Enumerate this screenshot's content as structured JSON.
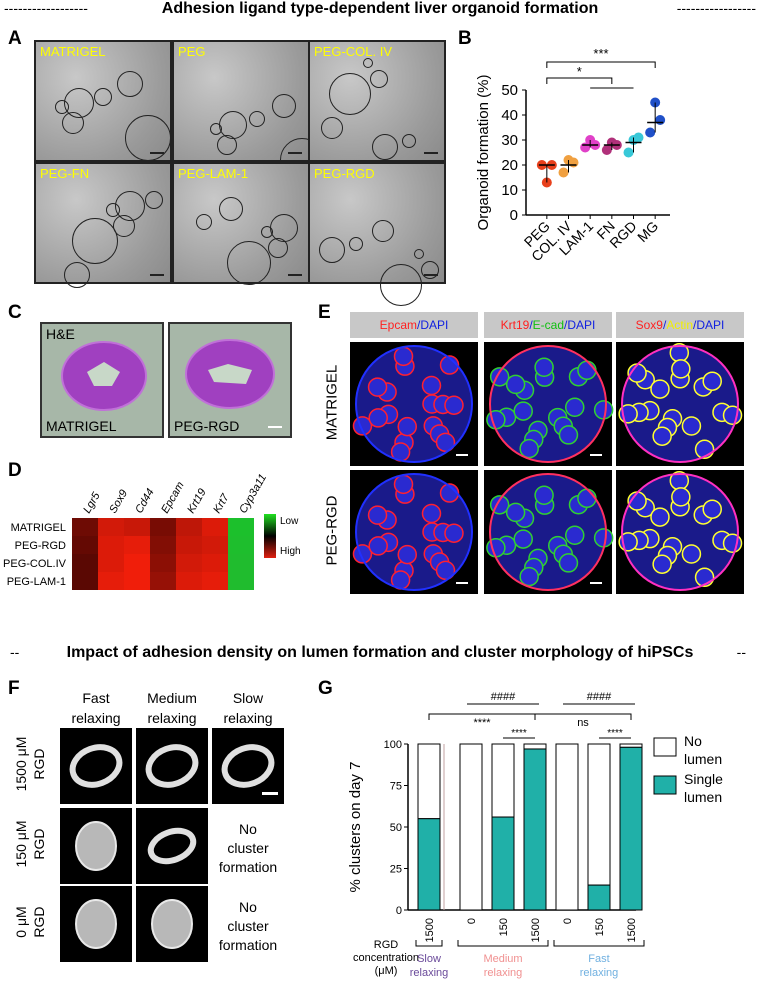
{
  "titles": {
    "top": "Adhesion ligand type-dependent liver organoid formation",
    "bottom": "Impact of adhesion density on lumen formation and cluster morphology of hiPSCs",
    "dash_left": "------------------",
    "dash_right": "-----------------",
    "dash2_left": "--",
    "dash2_right": "--"
  },
  "panel_labels": {
    "a": "A",
    "b": "B",
    "c": "C",
    "d": "D",
    "e": "E",
    "f": "F",
    "g": "G"
  },
  "panel_a": {
    "tiles": [
      "MATRIGEL",
      "PEG",
      "PEG-COL. IV",
      "PEG-FN",
      "PEG-LAM-1",
      "PEG-RGD"
    ]
  },
  "panel_b": {
    "significance": [
      "***",
      "*"
    ],
    "chart_data": {
      "type": "scatter",
      "title": "",
      "xlabel": "",
      "ylabel": "Organoid formation (%)",
      "ylim": [
        0,
        50
      ],
      "yticks": [
        0,
        10,
        20,
        30,
        40,
        50
      ],
      "categories": [
        "PEG",
        "COL. IV",
        "LAM-1",
        "FN",
        "RGD",
        "MG"
      ],
      "colors": [
        "#e8401c",
        "#f0a040",
        "#e040c8",
        "#b0307a",
        "#38c8d8",
        "#2050c8"
      ],
      "points": [
        [
          20,
          13,
          20
        ],
        [
          17,
          22,
          21
        ],
        [
          27,
          30,
          28
        ],
        [
          26,
          29,
          28
        ],
        [
          25,
          30,
          31
        ],
        [
          33,
          45,
          38
        ]
      ],
      "means": [
        20,
        20,
        28,
        28,
        29,
        37
      ]
    }
  },
  "panel_c": {
    "top_left": "H&E",
    "labels": [
      "MATRIGEL",
      "PEG-RGD"
    ]
  },
  "panel_d": {
    "chart_data": {
      "type": "heatmap",
      "columns": [
        "Lgr5",
        "Sox9",
        "Cd44",
        "Epcam",
        "Krt19",
        "Krt7",
        "Cyp3a11"
      ],
      "rows": [
        "MATRIGEL",
        "PEG-RGD",
        "PEG-COL.IV",
        "PEG-LAM-1"
      ],
      "values": [
        [
          0.35,
          0.85,
          0.8,
          0.4,
          0.75,
          0.9,
          0.2
        ],
        [
          0.3,
          0.9,
          0.95,
          0.45,
          0.8,
          0.85,
          0.25
        ],
        [
          0.25,
          0.9,
          1.0,
          0.5,
          0.85,
          0.9,
          0.3
        ],
        [
          0.25,
          0.95,
          1.0,
          0.55,
          0.9,
          0.95,
          0.3
        ]
      ],
      "legend": [
        "Low",
        "High"
      ]
    }
  },
  "panel_e": {
    "headers": [
      [
        {
          "t": "Epcam",
          "c": "#ff2020"
        },
        {
          "t": "/DAPI",
          "c": "#1020e0"
        }
      ],
      [
        {
          "t": "Krt19",
          "c": "#ff2020"
        },
        {
          "t": "/",
          "c": "#1020e0"
        },
        {
          "t": "E-cad",
          "c": "#10c010"
        },
        {
          "t": "/DAPI",
          "c": "#1020e0"
        }
      ],
      [
        {
          "t": "Sox9",
          "c": "#ff2020"
        },
        {
          "t": "/",
          "c": "#1020e0"
        },
        {
          "t": "Actin",
          "c": "#f0f000"
        },
        {
          "t": "/DAPI",
          "c": "#1020e0"
        }
      ]
    ],
    "rows": [
      "MATRIGEL",
      "PEG-RGD"
    ]
  },
  "panel_f": {
    "columns": [
      [
        "Fast",
        "relaxing"
      ],
      [
        "Medium",
        "relaxing"
      ],
      [
        "Slow",
        "relaxing"
      ]
    ],
    "rows": [
      [
        "1500 μM",
        "RGD"
      ],
      [
        "150 μM",
        "RGD"
      ],
      [
        "0 μM",
        "RGD"
      ]
    ],
    "no_cluster": [
      "No",
      "cluster",
      "formation"
    ]
  },
  "panel_g": {
    "significance": {
      "hash1": "####",
      "hash2": "####",
      "s1": "****",
      "ns": "ns",
      "s2": "****",
      "s3": "****"
    },
    "legend": [
      [
        "No",
        "lumen"
      ],
      [
        "Single",
        "lumen"
      ]
    ],
    "xlabel": [
      "RGD",
      "concentration",
      "(μM)"
    ],
    "groups": [
      {
        "label": [
          "Slow",
          "relaxing"
        ],
        "color": "#6a4a9a"
      },
      {
        "label": [
          "Medium",
          "relaxing"
        ],
        "color": "#f09090"
      },
      {
        "label": [
          "Fast",
          "relaxing"
        ],
        "color": "#70b0e0"
      }
    ],
    "chart_data": {
      "type": "bar",
      "stacked": true,
      "ylabel": "% clusters on day 7",
      "ylim": [
        0,
        100
      ],
      "yticks": [
        0,
        25,
        50,
        75,
        100
      ],
      "categories": [
        "1500",
        "0",
        "150",
        "1500",
        "0",
        "150",
        "1500"
      ],
      "series": [
        {
          "name": "Single lumen",
          "color": "#20b0a8",
          "values": [
            55,
            0,
            56,
            97,
            0,
            15,
            98
          ]
        },
        {
          "name": "No lumen",
          "color": "#ffffff",
          "values": [
            45,
            100,
            44,
            3,
            100,
            85,
            2
          ]
        }
      ]
    }
  }
}
